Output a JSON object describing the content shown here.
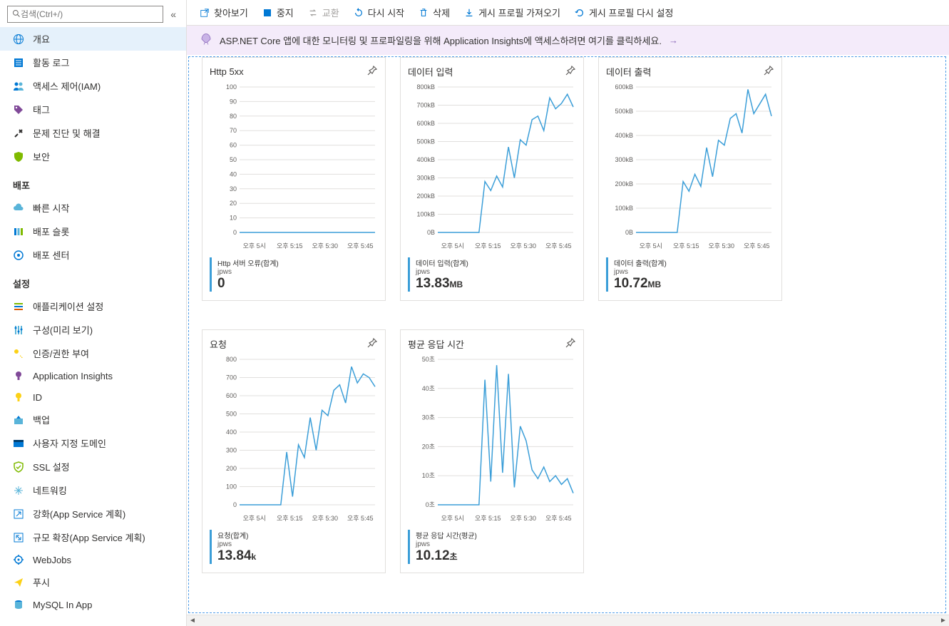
{
  "sidebar": {
    "search_placeholder": "검색(Ctrl+/)",
    "items": [
      {
        "icon": "globe",
        "label": "개요",
        "active": true
      },
      {
        "icon": "log",
        "label": "활동 로그"
      },
      {
        "icon": "people",
        "label": "액세스 제어(IAM)"
      },
      {
        "icon": "tag",
        "label": "태그"
      },
      {
        "icon": "tools",
        "label": "문제 진단 및 해결"
      },
      {
        "icon": "shield",
        "label": "보안"
      }
    ],
    "sections": [
      {
        "header": "배포",
        "items": [
          {
            "icon": "cloud",
            "label": "빠른 시작"
          },
          {
            "icon": "slots",
            "label": "배포 슬롯"
          },
          {
            "icon": "center",
            "label": "배포 센터"
          }
        ]
      },
      {
        "header": "설정",
        "items": [
          {
            "icon": "appsettings",
            "label": "애플리케이션 설정"
          },
          {
            "icon": "config",
            "label": "구성(미리 보기)"
          },
          {
            "icon": "key",
            "label": "인증/권한 부여"
          },
          {
            "icon": "insights",
            "label": "Application Insights"
          },
          {
            "icon": "id",
            "label": "ID"
          },
          {
            "icon": "backup",
            "label": "백업"
          },
          {
            "icon": "domain",
            "label": "사용자 지정 도메인"
          },
          {
            "icon": "ssl",
            "label": "SSL 설정"
          },
          {
            "icon": "network",
            "label": "네트워킹"
          },
          {
            "icon": "scaleup",
            "label": "강화(App Service 계획)"
          },
          {
            "icon": "scaleout",
            "label": "규모 확장(App Service 계획)"
          },
          {
            "icon": "webjobs",
            "label": "WebJobs"
          },
          {
            "icon": "push",
            "label": "푸시"
          },
          {
            "icon": "mysql",
            "label": "MySQL In App"
          }
        ]
      }
    ]
  },
  "toolbar": {
    "browse": "찾아보기",
    "stop": "중지",
    "swap": "교환",
    "restart": "다시 시작",
    "delete": "삭제",
    "import": "게시 프로필 가져오기",
    "reset": "게시 프로필 다시 설정"
  },
  "banner": {
    "text": "ASP.NET Core 앱에 대한 모니터링 및 프로파일링을 위해 Application Insights에 액세스하려면 여기를 클릭하세요."
  },
  "charts": {
    "x_labels": [
      "오후 5시",
      "오후 5:15",
      "오후 5:30",
      "오후 5:45"
    ],
    "line_color": "#3b9ed8",
    "grid_color": "#e1dfdd",
    "cards": [
      {
        "title": "Http 5xx",
        "y_ticks": [
          "100",
          "90",
          "80",
          "70",
          "60",
          "50",
          "40",
          "30",
          "20",
          "10",
          "0"
        ],
        "y_max": 100,
        "data": [
          0,
          0,
          0,
          0,
          0,
          0,
          0,
          0,
          0,
          0,
          0,
          0,
          0,
          0,
          0,
          0,
          0,
          0,
          0,
          0
        ],
        "metric_name": "Http 서버 오류(합계)",
        "metric_sub": "jpws",
        "metric_value": "0",
        "metric_unit": ""
      },
      {
        "title": "데이터 입력",
        "y_ticks": [
          "800kB",
          "700kB",
          "600kB",
          "500kB",
          "400kB",
          "300kB",
          "200kB",
          "100kB",
          "0B"
        ],
        "y_max": 800,
        "data": [
          0,
          0,
          0,
          0,
          0,
          0,
          0,
          0,
          280,
          230,
          310,
          250,
          470,
          300,
          510,
          480,
          620,
          640,
          560,
          740,
          680,
          710,
          760,
          690
        ],
        "metric_name": "데이터 입력(합계)",
        "metric_sub": "jpws",
        "metric_value": "13.83",
        "metric_unit": "MB"
      },
      {
        "title": "데이터 출력",
        "y_ticks": [
          "600kB",
          "500kB",
          "400kB",
          "300kB",
          "200kB",
          "100kB",
          "0B"
        ],
        "y_max": 600,
        "data": [
          0,
          0,
          0,
          0,
          0,
          0,
          0,
          0,
          210,
          170,
          240,
          190,
          350,
          230,
          380,
          360,
          470,
          490,
          410,
          590,
          490,
          530,
          570,
          480
        ],
        "metric_name": "데이터 출력(합계)",
        "metric_sub": "jpws",
        "metric_value": "10.72",
        "metric_unit": "MB"
      },
      {
        "title": "요청",
        "y_ticks": [
          "800",
          "700",
          "600",
          "500",
          "400",
          "300",
          "200",
          "100",
          "0"
        ],
        "y_max": 800,
        "data": [
          0,
          0,
          0,
          0,
          0,
          0,
          0,
          0,
          290,
          45,
          330,
          260,
          480,
          300,
          520,
          490,
          630,
          660,
          560,
          760,
          670,
          720,
          700,
          650
        ],
        "metric_name": "요청(합계)",
        "metric_sub": "jpws",
        "metric_value": "13.84",
        "metric_unit": "k"
      },
      {
        "title": "평균 응답 시간",
        "y_ticks": [
          "50초",
          "40초",
          "30초",
          "20초",
          "10초",
          "0초"
        ],
        "y_max": 50,
        "data": [
          0,
          0,
          0,
          0,
          0,
          0,
          0,
          0,
          43,
          8,
          48,
          11,
          45,
          6,
          27,
          22,
          12,
          9,
          13,
          8,
          10,
          7,
          9,
          4
        ],
        "metric_name": "평균 응답 시간(평균)",
        "metric_sub": "jpws",
        "metric_value": "10.12",
        "metric_unit": "초"
      }
    ]
  }
}
